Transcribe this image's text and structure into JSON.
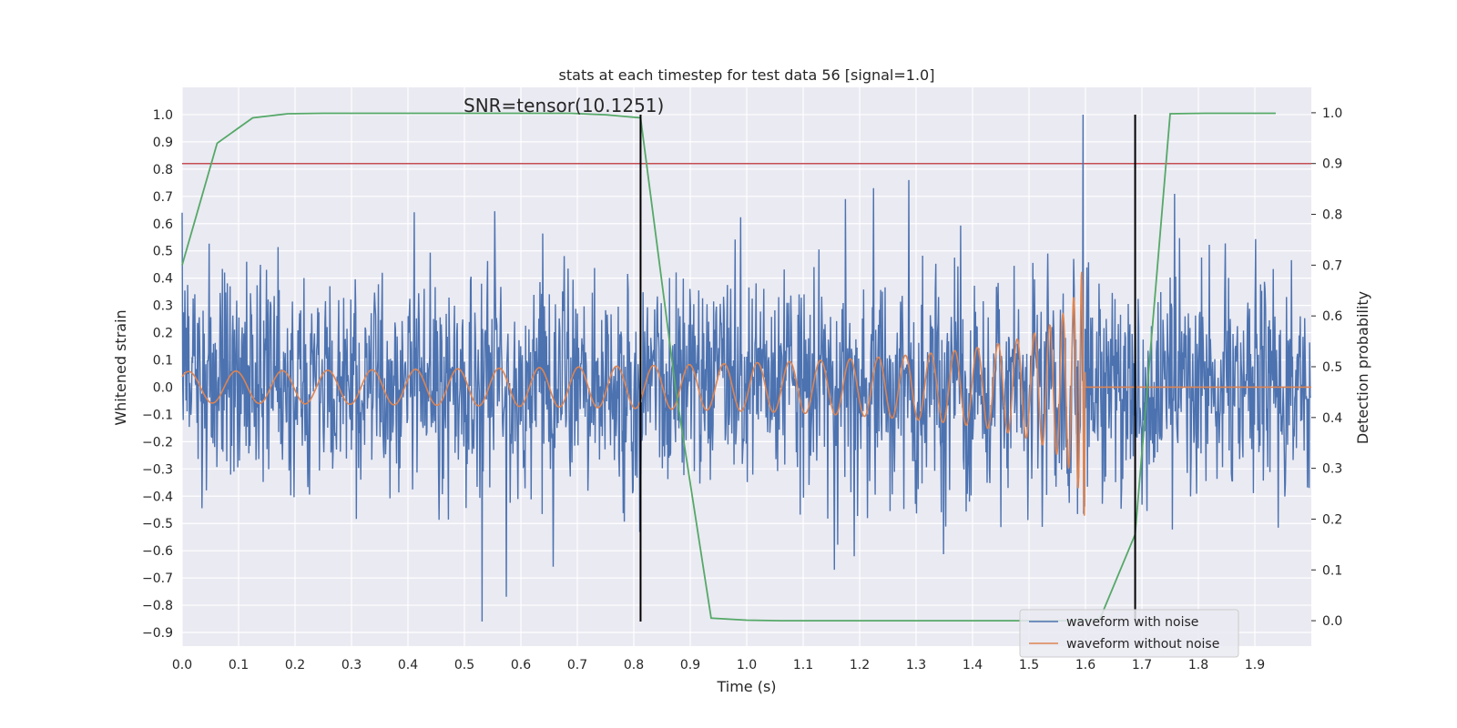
{
  "chart_data": {
    "type": "line",
    "title": "stats at each timestep for test data 56 [signal=1.0]",
    "xlabel": "Time (s)",
    "ylabel_left": "Whitened strain",
    "ylabel_right": "Detection probability",
    "xlim": [
      0.0,
      2.0
    ],
    "ylim_left": [
      -0.95,
      1.1
    ],
    "ylim_right": [
      -0.05,
      1.05
    ],
    "x_ticks": [
      "0.0",
      "0.1",
      "0.2",
      "0.3",
      "0.4",
      "0.5",
      "0.6",
      "0.7",
      "0.8",
      "0.9",
      "1.0",
      "1.1",
      "1.2",
      "1.3",
      "1.4",
      "1.5",
      "1.6",
      "1.7",
      "1.8",
      "1.9"
    ],
    "y_ticks_left": [
      "1.0",
      "0.9",
      "0.8",
      "0.7",
      "0.6",
      "0.5",
      "0.4",
      "0.3",
      "0.2",
      "0.1",
      "0.0",
      "−0.1",
      "−0.2",
      "−0.3",
      "−0.4",
      "−0.5",
      "−0.6",
      "−0.7",
      "−0.8",
      "−0.9"
    ],
    "y_ticks_right": [
      "1.0",
      "0.9",
      "0.8",
      "0.7",
      "0.6",
      "0.5",
      "0.4",
      "0.3",
      "0.2",
      "0.1",
      "0.0"
    ],
    "grid": true,
    "legend_position": "bottom-right",
    "annotation": "SNR=tensor(10.1251)",
    "threshold": {
      "axis": "right",
      "value": 0.9,
      "color": "#c44e52"
    },
    "event_lines": {
      "color": "#000000",
      "x": [
        0.812,
        1.688
      ],
      "y_range_left": [
        -0.86,
        1.0
      ]
    },
    "series": [
      {
        "name": "waveform with noise",
        "axis": "left",
        "color": "#4c72b0",
        "kind": "noisy_strain",
        "value_range": [
          -0.86,
          1.0
        ],
        "peaks": [
          {
            "x": 0.0,
            "y": 0.64
          },
          {
            "x": 0.531,
            "y": -0.86
          },
          {
            "x": 1.596,
            "y": 1.0
          },
          {
            "x": 1.175,
            "y": 0.69
          },
          {
            "x": 1.287,
            "y": 0.76
          }
        ]
      },
      {
        "name": "waveform without noise",
        "axis": "left",
        "color": "#dd8452",
        "kind": "chirp",
        "merger_time": 1.6,
        "peak_amplitude": 0.52
      },
      {
        "name": "",
        "axis": "right",
        "color": "#55a868",
        "kind": "detection_probability",
        "x": [
          0.0,
          0.062,
          0.125,
          0.187,
          0.25,
          0.312,
          0.375,
          0.437,
          0.5,
          0.562,
          0.625,
          0.687,
          0.75,
          0.812,
          0.875,
          0.937,
          1.0,
          1.062,
          1.125,
          1.187,
          1.25,
          1.312,
          1.375,
          1.437,
          1.5,
          1.562,
          1.625,
          1.688,
          1.75,
          1.812,
          1.875,
          1.937
        ],
        "y": [
          0.7,
          0.94,
          0.99,
          0.998,
          0.999,
          0.999,
          0.999,
          0.999,
          0.999,
          0.999,
          0.999,
          0.999,
          0.996,
          0.99,
          0.45,
          0.005,
          0.001,
          0.0,
          0.0,
          0.0,
          0.0,
          0.0,
          0.0,
          0.0,
          0.0,
          0.0,
          0.002,
          0.17,
          0.998,
          0.999,
          0.999,
          0.999
        ]
      }
    ]
  }
}
